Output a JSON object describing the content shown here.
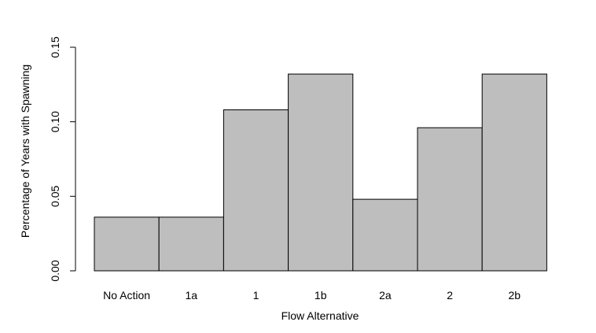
{
  "chart_data": {
    "type": "bar",
    "title": "",
    "xlabel": "Flow Alternative",
    "ylabel": "Percentage of Years with Spawning",
    "categories": [
      "No Action",
      "1a",
      "1",
      "1b",
      "2a",
      "2",
      "2b"
    ],
    "values": [
      0.036,
      0.036,
      0.108,
      0.132,
      0.048,
      0.096,
      0.132
    ],
    "ylim": [
      0,
      0.15
    ],
    "yticks": [
      0.0,
      0.05,
      0.1,
      0.15
    ],
    "ytick_labels": [
      "0.00",
      "0.05",
      "0.10",
      "0.15"
    ],
    "grid": false,
    "legend": "none",
    "bar_color": "#bebebe",
    "bar_edge_color": "#000000"
  }
}
